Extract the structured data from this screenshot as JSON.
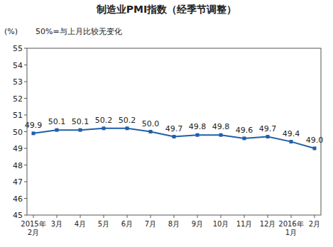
{
  "chart_data": {
    "type": "line",
    "title": "制造业PMI指数（经季节调整）",
    "y_label": "(%)",
    "annotation": "50%=与上月比较无变化",
    "categories": [
      "2015年2月",
      "3月",
      "4月",
      "5月",
      "6月",
      "7月",
      "8月",
      "9月",
      "10月",
      "11月",
      "12月",
      "2016年1月",
      "2月"
    ],
    "values": [
      49.9,
      50.1,
      50.1,
      50.2,
      50.2,
      50.0,
      49.7,
      49.8,
      49.8,
      49.6,
      49.7,
      49.4,
      49.0
    ],
    "value_labels": [
      "49.9",
      "50.1",
      "50.1",
      "50.2",
      "50.2",
      "50.0",
      "49.7",
      "49.8",
      "49.8",
      "49.6",
      "49.7",
      "49.4",
      "49.0"
    ],
    "color": "#1f5fa8",
    "marker": "square",
    "line_style": "solid",
    "data_labels": true,
    "grid": false,
    "ylim": [
      45,
      55
    ],
    "yticks": [
      45,
      46,
      47,
      48,
      49,
      50,
      51,
      52,
      53,
      54,
      55
    ]
  }
}
